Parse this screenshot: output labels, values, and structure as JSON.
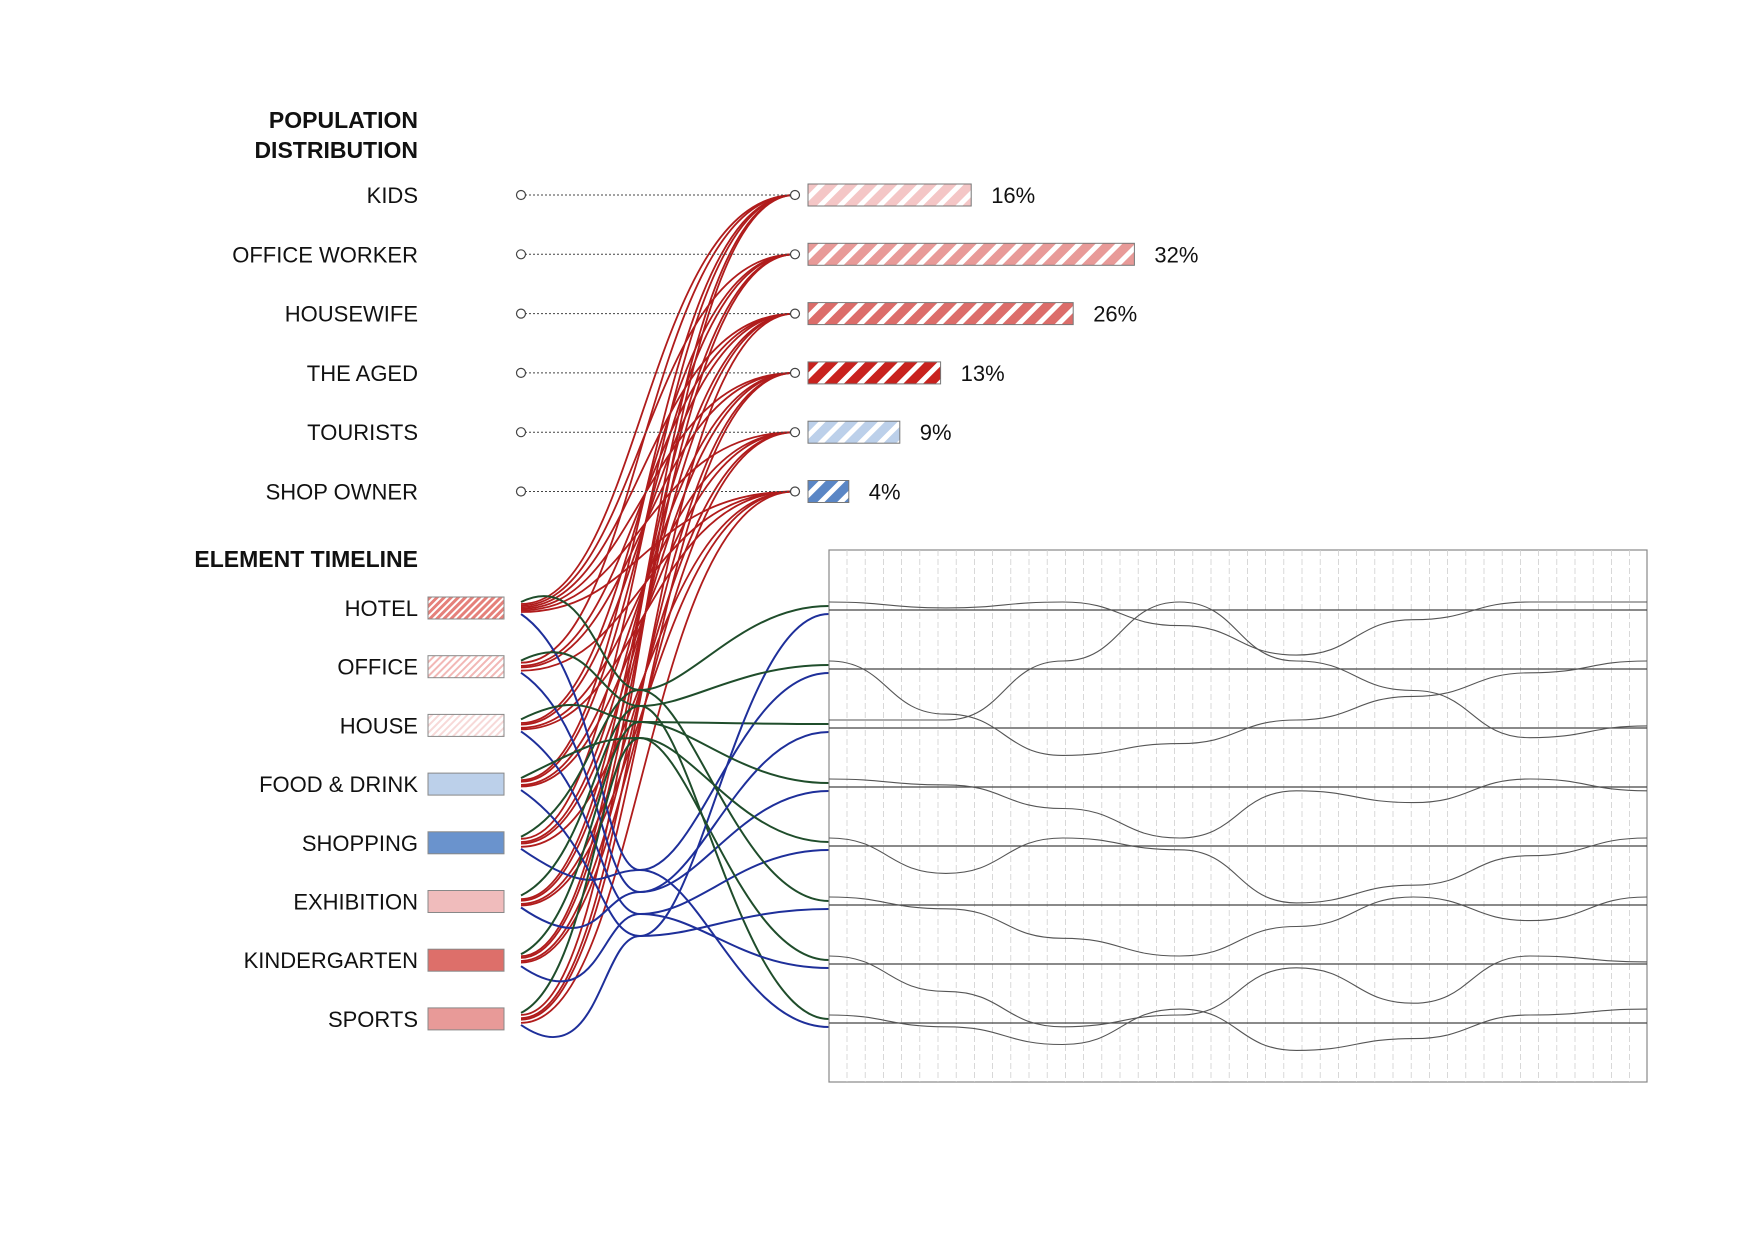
{
  "chart_data": {
    "type": "bar",
    "population": {
      "title_lines": [
        "POPULATION",
        "DISTRIBUTION"
      ],
      "categories": [
        "KIDS",
        "OFFICE WORKER",
        "HOUSEWIFE",
        "THE AGED",
        "TOURISTS",
        "SHOP OWNER"
      ],
      "values": [
        16,
        32,
        26,
        13,
        9,
        4
      ],
      "labels": [
        "16%",
        "32%",
        "26%",
        "13%",
        "9%",
        "4%"
      ],
      "colors": [
        "#f4c6c6",
        "#e89a98",
        "#dc6d6a",
        "#c8221e",
        "#bcd0ea",
        "#5a86c5"
      ]
    },
    "elements": {
      "title": "ELEMENT TIMELINE",
      "items": [
        {
          "label": "HOTEL",
          "color": "#e5807a",
          "pattern": "hatch-dense"
        },
        {
          "label": "OFFICE",
          "color": "#f2b8b6",
          "pattern": "hatch-light"
        },
        {
          "label": "HOUSE",
          "color": "#f7d9d8",
          "pattern": "hatch-light"
        },
        {
          "label": "FOOD & DRINK",
          "color": "#bcd0ea",
          "pattern": "solid"
        },
        {
          "label": "SHOPPING",
          "color": "#6a93cd",
          "pattern": "solid"
        },
        {
          "label": "EXHIBITION",
          "color": "#f0bcbc",
          "pattern": "solid"
        },
        {
          "label": "KINDERGARTEN",
          "color": "#dd6f6a",
          "pattern": "solid"
        },
        {
          "label": "SPORTS",
          "color": "#e89a98",
          "pattern": "solid"
        }
      ]
    },
    "flow_colors": {
      "population_links": "#b01c1c",
      "blue_links": "#1e2f9a",
      "green_links": "#1f4d2b",
      "timeline_lines": "#444444"
    },
    "timeline": {
      "grid": true,
      "tracks": 8
    }
  }
}
